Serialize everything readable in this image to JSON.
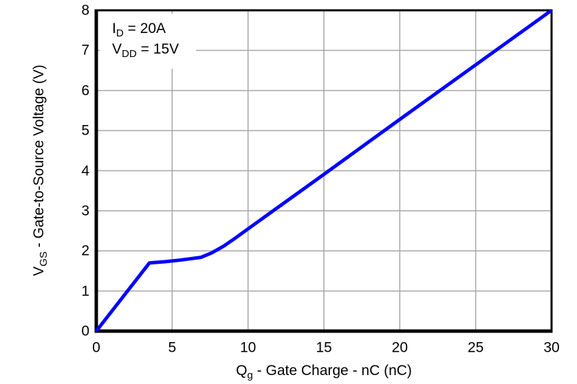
{
  "chart_data": {
    "type": "line",
    "title": "",
    "xlabel": "Qg - Gate Charge - nC (nC)",
    "ylabel": "VGS - Gate-to-Source Voltage (V)",
    "x_axis": {
      "min": 0,
      "max": 30,
      "ticks": [
        0,
        5,
        10,
        15,
        20,
        25,
        30
      ]
    },
    "y_axis": {
      "min": 0,
      "max": 8,
      "ticks": [
        0,
        1,
        2,
        3,
        4,
        5,
        6,
        7,
        8
      ]
    },
    "grid": true,
    "legend": "none",
    "annotations": [
      "ID = 20A",
      "VDD = 15V"
    ],
    "series": [
      {
        "name": "VGS vs Qg",
        "color": "#0000ff",
        "points": [
          [
            0,
            0
          ],
          [
            3.5,
            1.7
          ],
          [
            4.5,
            1.73
          ],
          [
            5.5,
            1.77
          ],
          [
            6.9,
            1.84
          ],
          [
            7.6,
            1.95
          ],
          [
            8.4,
            2.12
          ],
          [
            9.2,
            2.33
          ],
          [
            10,
            2.55
          ],
          [
            15,
            3.91
          ],
          [
            20,
            5.28
          ],
          [
            25,
            6.64
          ],
          [
            30,
            8
          ]
        ]
      }
    ]
  },
  "colors": {
    "curve": "#0000ff",
    "gridline": "#a6a6a6",
    "axis": "#000000",
    "background": "#ffffff",
    "text": "#000000"
  },
  "labels": {
    "x_axis": {
      "base": "Q",
      "sub": "g",
      "rest": " - Gate Charge - nC (nC)"
    },
    "y_axis": {
      "base": "V",
      "sub": "GS",
      "rest": " - Gate-to-Source Voltage (V)"
    },
    "annotation": {
      "line1": {
        "base": "I",
        "sub": "D",
        "rest": " = 20A"
      },
      "line2": {
        "base": "V",
        "sub": "DD",
        "rest": " = 15V"
      }
    }
  }
}
